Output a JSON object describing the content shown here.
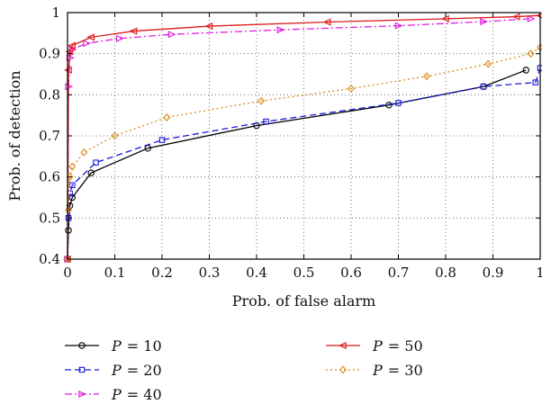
{
  "chart_data": {
    "type": "line",
    "title": "",
    "xlabel": "Prob. of false alarm",
    "ylabel": "Prob. of detection",
    "xlim": [
      0,
      1
    ],
    "ylim": [
      0.4,
      1
    ],
    "grid": true,
    "legend_placement": "bottom",
    "x_ticks": [
      "0",
      "0.1",
      "0.2",
      "0.3",
      "0.4",
      "0.5",
      "0.6",
      "0.7",
      "0.8",
      "0.9",
      "1"
    ],
    "y_ticks": [
      "0.4",
      "0.5",
      "0.6",
      "0.7",
      "0.8",
      "0.9",
      "1"
    ],
    "series": [
      {
        "name": "P = 10",
        "var": "P",
        "value_label": "= 10",
        "color": "#000000",
        "dash": "",
        "marker": "circle",
        "x": [
          0,
          0.002,
          0.005,
          0.01,
          0.05,
          0.17,
          0.4,
          0.68,
          0.88,
          0.97
        ],
        "y": [
          0.4,
          0.47,
          0.53,
          0.55,
          0.61,
          0.67,
          0.725,
          0.775,
          0.82,
          0.86
        ]
      },
      {
        "name": "P = 20",
        "var": "P",
        "value_label": "= 20",
        "color": "#1a1adb",
        "dash": "7,4",
        "marker": "square",
        "x": [
          0,
          0.002,
          0.005,
          0.01,
          0.06,
          0.2,
          0.42,
          0.7,
          0.88,
          0.99,
          1.0
        ],
        "y": [
          0.4,
          0.5,
          0.56,
          0.58,
          0.635,
          0.69,
          0.735,
          0.78,
          0.82,
          0.83,
          0.865
        ]
      },
      {
        "name": "P = 40",
        "var": "P",
        "value_label": "= 40",
        "color": "#e01ee0",
        "dash": "8,3,2,3",
        "marker": "triangle-right",
        "x": [
          0,
          0.002,
          0.005,
          0.01,
          0.04,
          0.11,
          0.22,
          0.45,
          0.7,
          0.88,
          0.98
        ],
        "y": [
          0.4,
          0.82,
          0.89,
          0.91,
          0.925,
          0.937,
          0.947,
          0.958,
          0.968,
          0.978,
          0.985
        ]
      },
      {
        "name": "P = 50",
        "var": "P",
        "value_label": "= 50",
        "color": "#dd1a1a",
        "dash": "",
        "marker": "triangle-left",
        "x": [
          0,
          0.002,
          0.005,
          0.01,
          0.05,
          0.14,
          0.3,
          0.55,
          0.8,
          0.95,
          1.0
        ],
        "y": [
          0.4,
          0.86,
          0.905,
          0.92,
          0.94,
          0.955,
          0.967,
          0.977,
          0.985,
          0.99,
          0.993
        ]
      },
      {
        "name": "P = 30",
        "var": "P",
        "value_label": "= 30",
        "color": "#d98a1c",
        "dash": "2,3",
        "marker": "diamond",
        "x": [
          0,
          0.002,
          0.005,
          0.01,
          0.035,
          0.1,
          0.21,
          0.41,
          0.6,
          0.76,
          0.89,
          0.98,
          1.0
        ],
        "y": [
          0.4,
          0.52,
          0.6,
          0.625,
          0.66,
          0.7,
          0.745,
          0.785,
          0.815,
          0.845,
          0.875,
          0.9,
          0.915
        ]
      }
    ]
  }
}
